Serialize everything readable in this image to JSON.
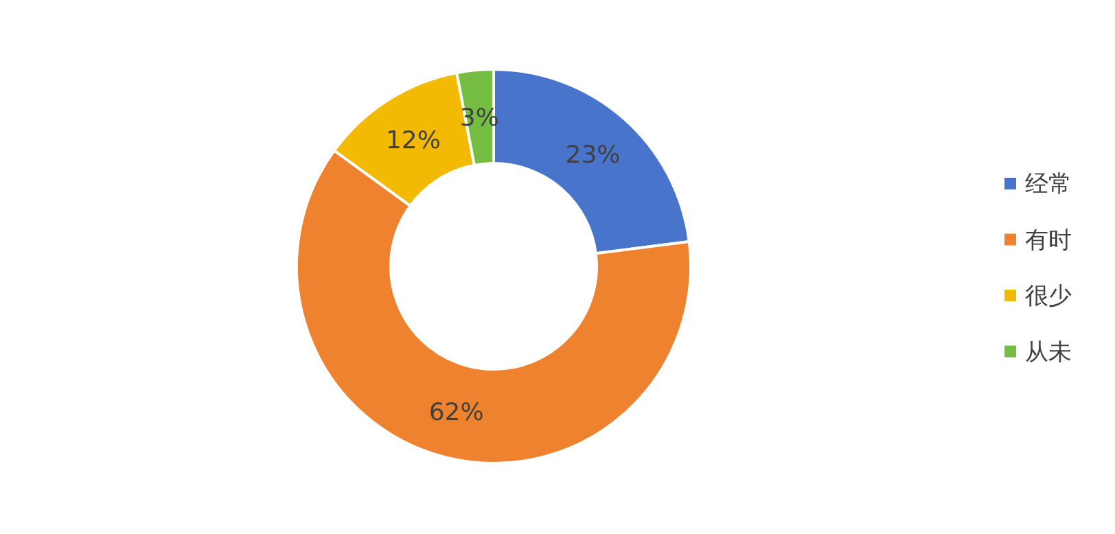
{
  "chart_data": {
    "type": "donut",
    "categories": [
      "经常",
      "有时",
      "很少",
      "从未"
    ],
    "values": [
      23,
      62,
      12,
      3
    ],
    "colors": [
      "#4874cb",
      "#ee822f",
      "#f2ba02",
      "#75bd42"
    ],
    "value_labels": [
      "23%",
      "62%",
      "12%",
      "3%"
    ],
    "legend": "right"
  }
}
